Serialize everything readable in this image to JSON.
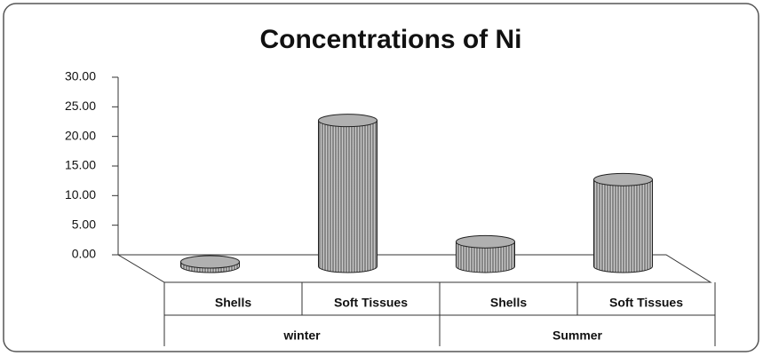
{
  "chart_data": {
    "type": "bar3d",
    "title": "Concentrations of Ni",
    "categories": [
      "Shells",
      "Soft Tissues",
      "Shells",
      "Soft Tissues"
    ],
    "groups": [
      "winter",
      "Summer"
    ],
    "values": [
      0.6,
      24.5,
      4.0,
      14.5
    ],
    "color": "#b0b0b0",
    "ylim": [
      0,
      30
    ],
    "yticks": [
      {
        "value": 0,
        "label": "0.00"
      },
      {
        "value": 5,
        "label": "5.00"
      },
      {
        "value": 10,
        "label": "10.00"
      },
      {
        "value": 15,
        "label": "15.00"
      },
      {
        "value": 20,
        "label": "20.00"
      },
      {
        "value": 25,
        "label": "25.00"
      },
      {
        "value": 30,
        "label": "30.00"
      }
    ]
  }
}
